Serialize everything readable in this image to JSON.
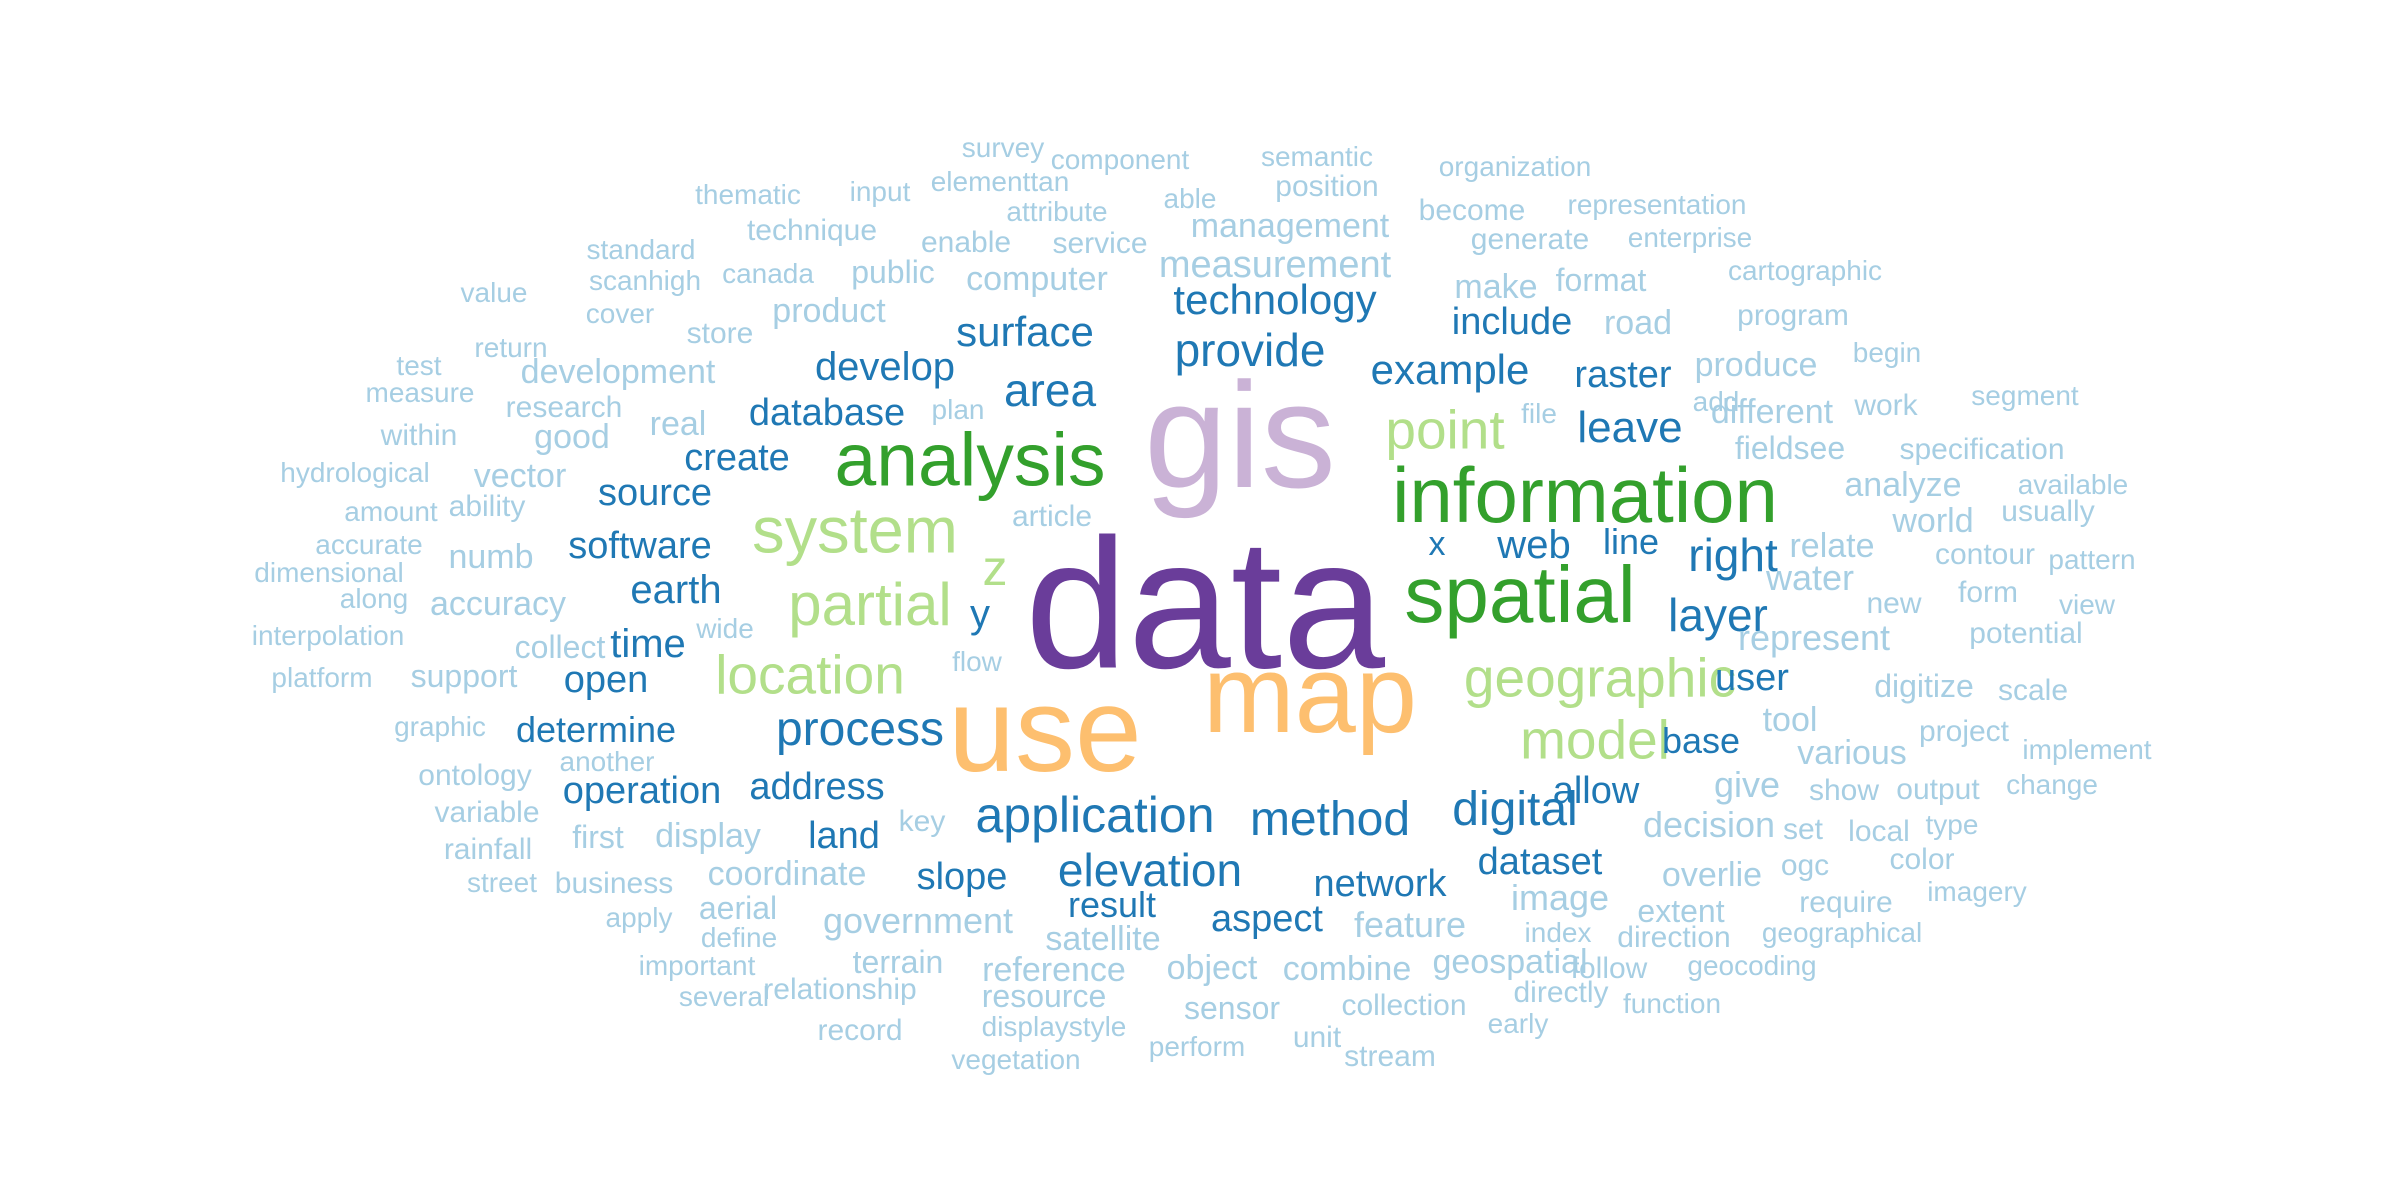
{
  "palette": {
    "purple": "#6a3d9a",
    "lavender": "#cab2d6",
    "orange": "#fdbf6f",
    "dark_green": "#33a02c",
    "light_green": "#b2df8a",
    "dark_blue": "#1f78b4",
    "light_blue": "#a6cee3"
  },
  "words": [
    {
      "text": "data",
      "color": "purple"
    },
    {
      "text": "gis",
      "color": "lavender"
    },
    {
      "text": "use",
      "color": "orange"
    },
    {
      "text": "map",
      "color": "orange"
    },
    {
      "text": "analysis",
      "color": "dark_green"
    },
    {
      "text": "information",
      "color": "dark_green"
    },
    {
      "text": "spatial",
      "color": "dark_green"
    },
    {
      "text": "system",
      "color": "light_green"
    },
    {
      "text": "partial",
      "color": "light_green"
    },
    {
      "text": "location",
      "color": "light_green"
    },
    {
      "text": "geographic",
      "color": "light_green"
    },
    {
      "text": "model",
      "color": "light_green"
    },
    {
      "text": "point",
      "color": "light_green"
    },
    {
      "text": "z",
      "color": "light_green"
    },
    {
      "text": "application",
      "color": "dark_blue"
    },
    {
      "text": "method",
      "color": "dark_blue"
    },
    {
      "text": "process",
      "color": "dark_blue"
    },
    {
      "text": "elevation",
      "color": "dark_blue"
    },
    {
      "text": "digital",
      "color": "dark_blue"
    },
    {
      "text": "technology",
      "color": "dark_blue"
    },
    {
      "text": "provide",
      "color": "dark_blue"
    },
    {
      "text": "example",
      "color": "dark_blue"
    },
    {
      "text": "area",
      "color": "dark_blue"
    },
    {
      "text": "surface",
      "color": "dark_blue"
    },
    {
      "text": "develop",
      "color": "dark_blue"
    },
    {
      "text": "layer",
      "color": "dark_blue"
    },
    {
      "text": "right",
      "color": "dark_blue"
    },
    {
      "text": "leave",
      "color": "dark_blue"
    },
    {
      "text": "raster",
      "color": "dark_blue"
    },
    {
      "text": "include",
      "color": "dark_blue"
    },
    {
      "text": "database",
      "color": "dark_blue"
    },
    {
      "text": "create",
      "color": "dark_blue"
    },
    {
      "text": "source",
      "color": "dark_blue"
    },
    {
      "text": "software",
      "color": "dark_blue"
    },
    {
      "text": "earth",
      "color": "dark_blue"
    },
    {
      "text": "time",
      "color": "dark_blue"
    },
    {
      "text": "open",
      "color": "dark_blue"
    },
    {
      "text": "determine",
      "color": "dark_blue"
    },
    {
      "text": "operation",
      "color": "dark_blue"
    },
    {
      "text": "address",
      "color": "dark_blue"
    },
    {
      "text": "land",
      "color": "dark_blue"
    },
    {
      "text": "slope",
      "color": "dark_blue"
    },
    {
      "text": "result",
      "color": "dark_blue"
    },
    {
      "text": "aspect",
      "color": "dark_blue"
    },
    {
      "text": "network",
      "color": "dark_blue"
    },
    {
      "text": "dataset",
      "color": "dark_blue"
    },
    {
      "text": "allow",
      "color": "dark_blue"
    },
    {
      "text": "base",
      "color": "dark_blue"
    },
    {
      "text": "user",
      "color": "dark_blue"
    },
    {
      "text": "web",
      "color": "dark_blue"
    },
    {
      "text": "line",
      "color": "dark_blue"
    },
    {
      "text": "x",
      "color": "dark_blue"
    },
    {
      "text": "y",
      "color": "dark_blue"
    },
    {
      "text": "survey",
      "color": "light_blue"
    },
    {
      "text": "component",
      "color": "light_blue"
    },
    {
      "text": "semantic",
      "color": "light_blue"
    },
    {
      "text": "organization",
      "color": "light_blue"
    },
    {
      "text": "thematic",
      "color": "light_blue"
    },
    {
      "text": "input",
      "color": "light_blue"
    },
    {
      "text": "elementtan",
      "color": "light_blue"
    },
    {
      "text": "attribute",
      "color": "light_blue"
    },
    {
      "text": "able",
      "color": "light_blue"
    },
    {
      "text": "position",
      "color": "light_blue"
    },
    {
      "text": "become",
      "color": "light_blue"
    },
    {
      "text": "representation",
      "color": "light_blue"
    },
    {
      "text": "technique",
      "color": "light_blue"
    },
    {
      "text": "enable",
      "color": "light_blue"
    },
    {
      "text": "service",
      "color": "light_blue"
    },
    {
      "text": "management",
      "color": "light_blue"
    },
    {
      "text": "generate",
      "color": "light_blue"
    },
    {
      "text": "enterprise",
      "color": "light_blue"
    },
    {
      "text": "standard",
      "color": "light_blue"
    },
    {
      "text": "scanhigh",
      "color": "light_blue"
    },
    {
      "text": "canada",
      "color": "light_blue"
    },
    {
      "text": "public",
      "color": "light_blue"
    },
    {
      "text": "computer",
      "color": "light_blue"
    },
    {
      "text": "measurement",
      "color": "light_blue"
    },
    {
      "text": "make",
      "color": "light_blue"
    },
    {
      "text": "format",
      "color": "light_blue"
    },
    {
      "text": "cartographic",
      "color": "light_blue"
    },
    {
      "text": "value",
      "color": "light_blue"
    },
    {
      "text": "cover",
      "color": "light_blue"
    },
    {
      "text": "store",
      "color": "light_blue"
    },
    {
      "text": "product",
      "color": "light_blue"
    },
    {
      "text": "road",
      "color": "light_blue"
    },
    {
      "text": "program",
      "color": "light_blue"
    },
    {
      "text": "return",
      "color": "light_blue"
    },
    {
      "text": "test",
      "color": "light_blue"
    },
    {
      "text": "development",
      "color": "light_blue"
    },
    {
      "text": "produce",
      "color": "light_blue"
    },
    {
      "text": "begin",
      "color": "light_blue"
    },
    {
      "text": "measure",
      "color": "light_blue"
    },
    {
      "text": "research",
      "color": "light_blue"
    },
    {
      "text": "plan",
      "color": "light_blue"
    },
    {
      "text": "file",
      "color": "light_blue"
    },
    {
      "text": "add",
      "color": "light_blue"
    },
    {
      "text": "different",
      "color": "light_blue"
    },
    {
      "text": "work",
      "color": "light_blue"
    },
    {
      "text": "segment",
      "color": "light_blue"
    },
    {
      "text": "within",
      "color": "light_blue"
    },
    {
      "text": "real",
      "color": "light_blue"
    },
    {
      "text": "good",
      "color": "light_blue"
    },
    {
      "text": "fieldsee",
      "color": "light_blue"
    },
    {
      "text": "specification",
      "color": "light_blue"
    },
    {
      "text": "hydrological",
      "color": "light_blue"
    },
    {
      "text": "vector",
      "color": "light_blue"
    },
    {
      "text": "analyze",
      "color": "light_blue"
    },
    {
      "text": "available",
      "color": "light_blue"
    },
    {
      "text": "amount",
      "color": "light_blue"
    },
    {
      "text": "ability",
      "color": "light_blue"
    },
    {
      "text": "article",
      "color": "light_blue"
    },
    {
      "text": "usually",
      "color": "light_blue"
    },
    {
      "text": "accurate",
      "color": "light_blue"
    },
    {
      "text": "world",
      "color": "light_blue"
    },
    {
      "text": "numb",
      "color": "light_blue"
    },
    {
      "text": "relate",
      "color": "light_blue"
    },
    {
      "text": "contour",
      "color": "light_blue"
    },
    {
      "text": "pattern",
      "color": "light_blue"
    },
    {
      "text": "dimensional",
      "color": "light_blue"
    },
    {
      "text": "water",
      "color": "light_blue"
    },
    {
      "text": "along",
      "color": "light_blue"
    },
    {
      "text": "accuracy",
      "color": "light_blue"
    },
    {
      "text": "new",
      "color": "light_blue"
    },
    {
      "text": "form",
      "color": "light_blue"
    },
    {
      "text": "view",
      "color": "light_blue"
    },
    {
      "text": "interpolation",
      "color": "light_blue"
    },
    {
      "text": "wide",
      "color": "light_blue"
    },
    {
      "text": "collect",
      "color": "light_blue"
    },
    {
      "text": "represent",
      "color": "light_blue"
    },
    {
      "text": "potential",
      "color": "light_blue"
    },
    {
      "text": "platform",
      "color": "light_blue"
    },
    {
      "text": "support",
      "color": "light_blue"
    },
    {
      "text": "flow",
      "color": "light_blue"
    },
    {
      "text": "digitize",
      "color": "light_blue"
    },
    {
      "text": "scale",
      "color": "light_blue"
    },
    {
      "text": "graphic",
      "color": "light_blue"
    },
    {
      "text": "tool",
      "color": "light_blue"
    },
    {
      "text": "project",
      "color": "light_blue"
    },
    {
      "text": "another",
      "color": "light_blue"
    },
    {
      "text": "various",
      "color": "light_blue"
    },
    {
      "text": "implement",
      "color": "light_blue"
    },
    {
      "text": "ontology",
      "color": "light_blue"
    },
    {
      "text": "give",
      "color": "light_blue"
    },
    {
      "text": "show",
      "color": "light_blue"
    },
    {
      "text": "output",
      "color": "light_blue"
    },
    {
      "text": "change",
      "color": "light_blue"
    },
    {
      "text": "variable",
      "color": "light_blue"
    },
    {
      "text": "key",
      "color": "light_blue"
    },
    {
      "text": "decision",
      "color": "light_blue"
    },
    {
      "text": "set",
      "color": "light_blue"
    },
    {
      "text": "local",
      "color": "light_blue"
    },
    {
      "text": "type",
      "color": "light_blue"
    },
    {
      "text": "rainfall",
      "color": "light_blue"
    },
    {
      "text": "first",
      "color": "light_blue"
    },
    {
      "text": "display",
      "color": "light_blue"
    },
    {
      "text": "color",
      "color": "light_blue"
    },
    {
      "text": "street",
      "color": "light_blue"
    },
    {
      "text": "business",
      "color": "light_blue"
    },
    {
      "text": "coordinate",
      "color": "light_blue"
    },
    {
      "text": "overlie",
      "color": "light_blue"
    },
    {
      "text": "ogc",
      "color": "light_blue"
    },
    {
      "text": "imagery",
      "color": "light_blue"
    },
    {
      "text": "aerial",
      "color": "light_blue"
    },
    {
      "text": "image",
      "color": "light_blue"
    },
    {
      "text": "require",
      "color": "light_blue"
    },
    {
      "text": "apply",
      "color": "light_blue"
    },
    {
      "text": "government",
      "color": "light_blue"
    },
    {
      "text": "feature",
      "color": "light_blue"
    },
    {
      "text": "extent",
      "color": "light_blue"
    },
    {
      "text": "define",
      "color": "light_blue"
    },
    {
      "text": "satellite",
      "color": "light_blue"
    },
    {
      "text": "index",
      "color": "light_blue"
    },
    {
      "text": "direction",
      "color": "light_blue"
    },
    {
      "text": "geographical",
      "color": "light_blue"
    },
    {
      "text": "terrain",
      "color": "light_blue"
    },
    {
      "text": "object",
      "color": "light_blue"
    },
    {
      "text": "combine",
      "color": "light_blue"
    },
    {
      "text": "geospatial",
      "color": "light_blue"
    },
    {
      "text": "important",
      "color": "light_blue"
    },
    {
      "text": "reference",
      "color": "light_blue"
    },
    {
      "text": "follow",
      "color": "light_blue"
    },
    {
      "text": "geocoding",
      "color": "light_blue"
    },
    {
      "text": "relationship",
      "color": "light_blue"
    },
    {
      "text": "resource",
      "color": "light_blue"
    },
    {
      "text": "directly",
      "color": "light_blue"
    },
    {
      "text": "several",
      "color": "light_blue"
    },
    {
      "text": "sensor",
      "color": "light_blue"
    },
    {
      "text": "collection",
      "color": "light_blue"
    },
    {
      "text": "function",
      "color": "light_blue"
    },
    {
      "text": "displaystyle",
      "color": "light_blue"
    },
    {
      "text": "early",
      "color": "light_blue"
    },
    {
      "text": "record",
      "color": "light_blue"
    },
    {
      "text": "unit",
      "color": "light_blue"
    },
    {
      "text": "perform",
      "color": "light_blue"
    },
    {
      "text": "stream",
      "color": "light_blue"
    },
    {
      "text": "vegetation",
      "color": "light_blue"
    }
  ]
}
